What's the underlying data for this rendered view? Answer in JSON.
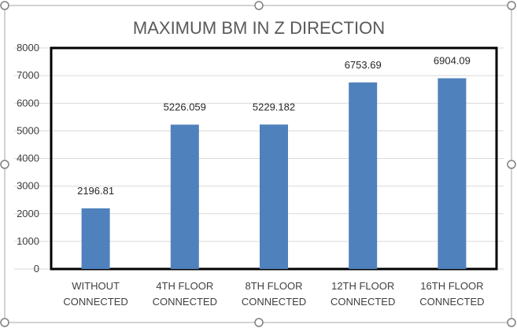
{
  "chart_data": {
    "type": "bar",
    "title": "MAXIMUM BM IN Z DIRECTION",
    "categories": [
      [
        "WITHOUT",
        "CONNECTED"
      ],
      [
        "4TH FLOOR",
        "CONNECTED"
      ],
      [
        "8TH FLOOR",
        "CONNECTED"
      ],
      [
        "12TH FLOOR",
        "CONNECTED"
      ],
      [
        "16TH FLOOR",
        "CONNECTED"
      ]
    ],
    "values": [
      2196.81,
      5226.059,
      5229.182,
      6753.69,
      6904.09
    ],
    "data_labels": [
      "2196.81",
      "5226.059",
      "5229.182",
      "6753.69",
      "6904.09"
    ],
    "y_ticks": [
      "0",
      "1000",
      "2000",
      "3000",
      "4000",
      "5000",
      "6000",
      "7000",
      "8000"
    ],
    "ylim": [
      0,
      8000
    ],
    "xlabel": "",
    "ylabel": "",
    "grid": true,
    "legend": "none",
    "bar_color": "#4f81bd",
    "plot_border_color": "#000000"
  }
}
